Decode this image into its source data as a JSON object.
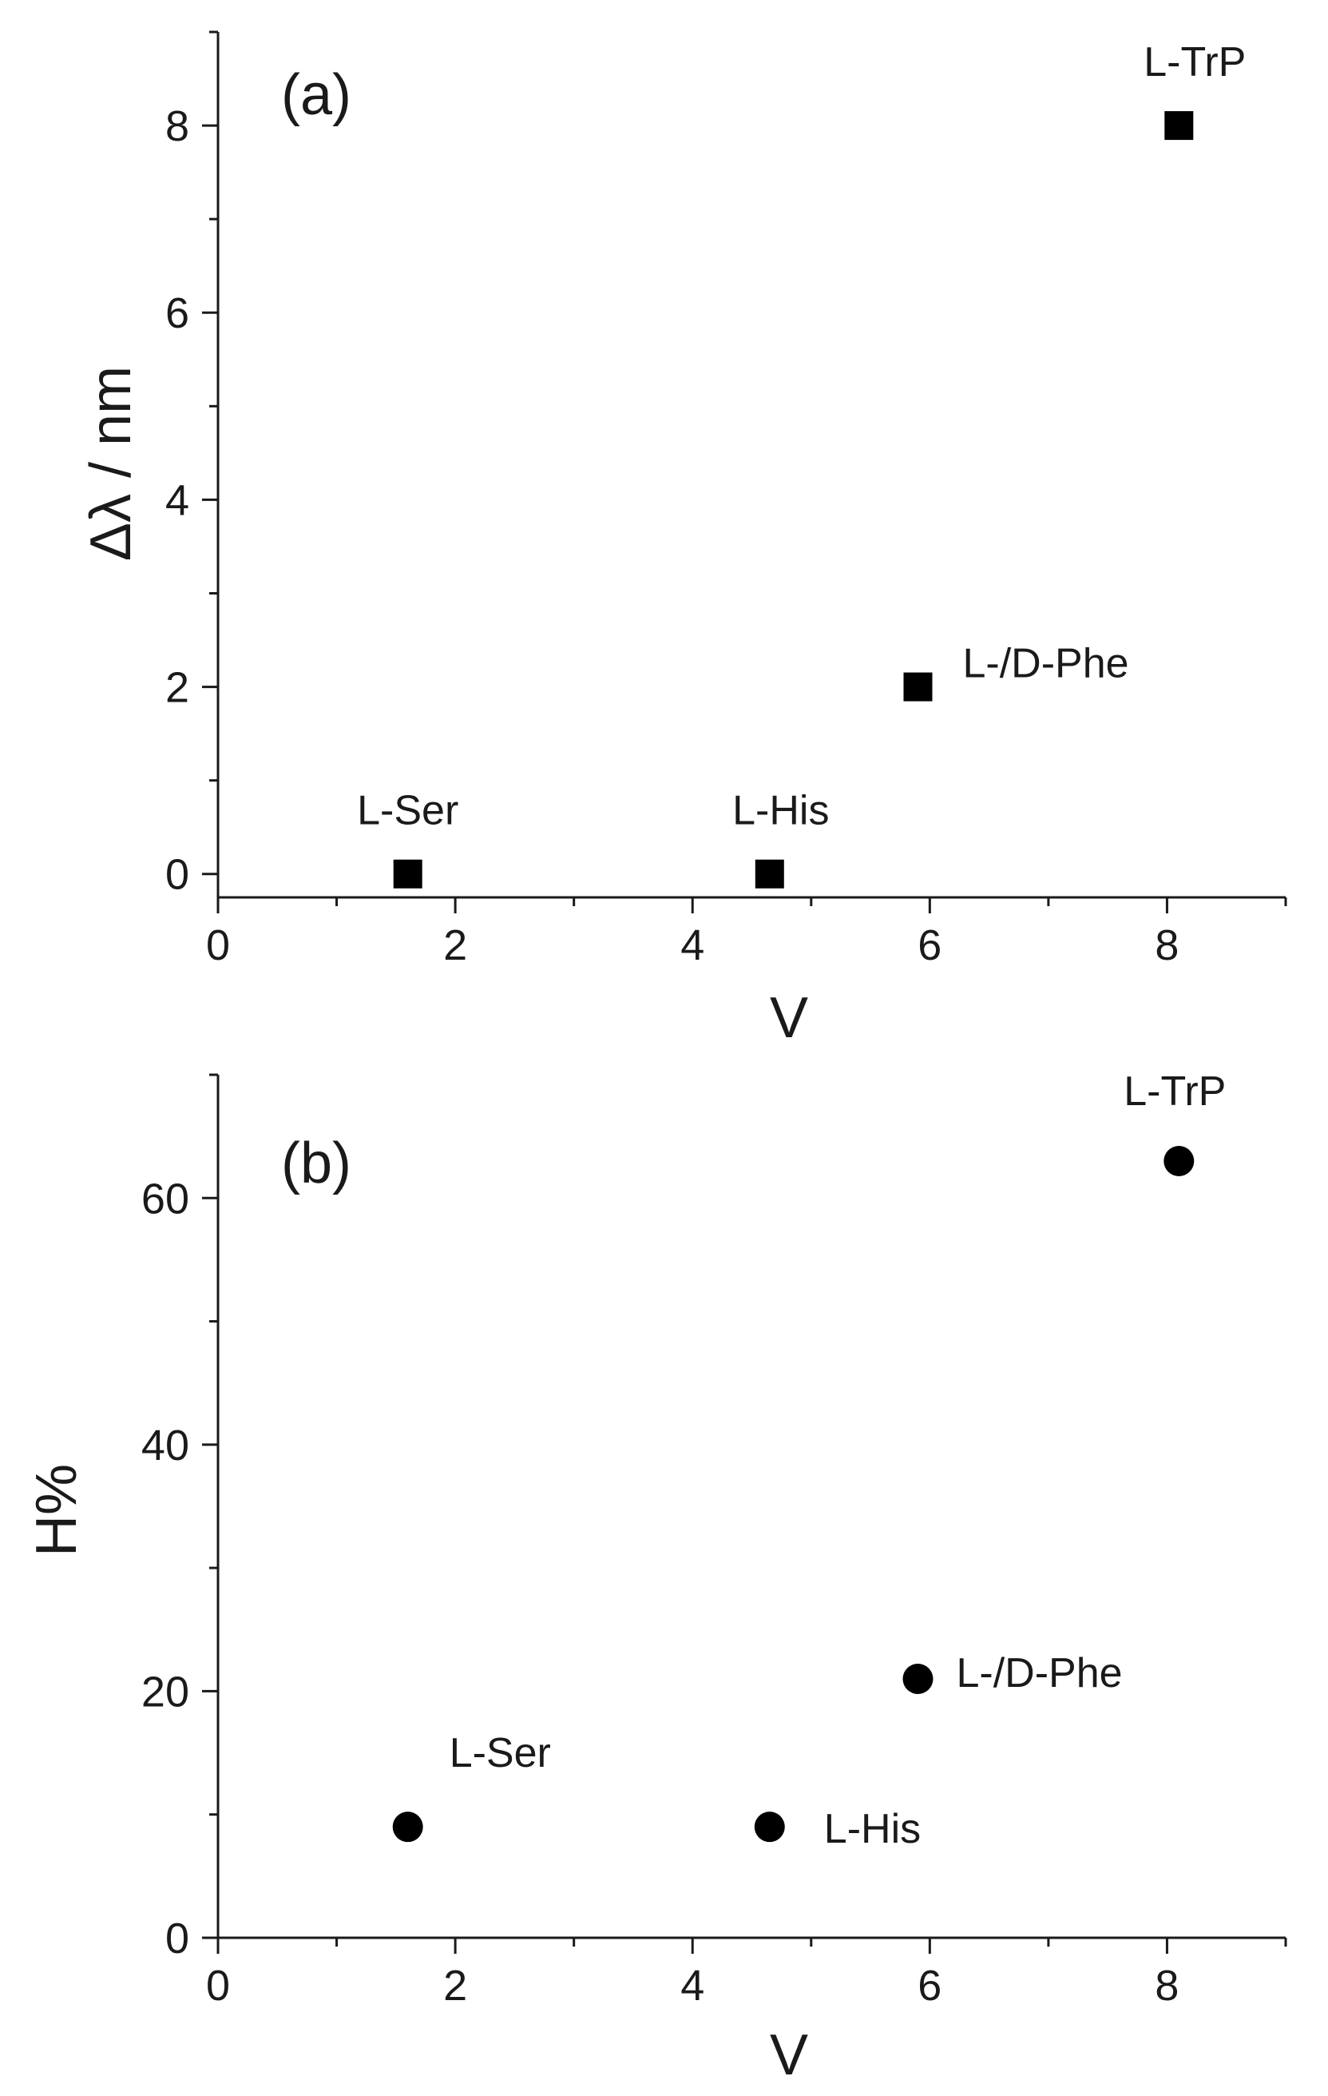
{
  "chart_data": [
    {
      "type": "scatter",
      "panel_label": "(a)",
      "xlabel": "V",
      "ylabel": "Δλ / nm",
      "xlim": [
        0,
        9
      ],
      "ylim": [
        -0.25,
        9
      ],
      "x_ticks": [
        0,
        2,
        4,
        6,
        8
      ],
      "y_ticks": [
        0,
        2,
        4,
        6,
        8
      ],
      "x_tick_labels": [
        "0",
        "2",
        "4",
        "6",
        "8"
      ],
      "y_tick_labels": [
        "0",
        "2",
        "4",
        "6",
        "8"
      ],
      "marker": "square",
      "color": "#000000",
      "grid": false,
      "points": [
        {
          "label": "L-Ser",
          "x": 1.6,
          "y": 0
        },
        {
          "label": "L-His",
          "x": 4.65,
          "y": 0
        },
        {
          "label": "L-/D-Phe",
          "x": 5.9,
          "y": 2
        },
        {
          "label": "L-TrP",
          "x": 8.1,
          "y": 8
        }
      ]
    },
    {
      "type": "scatter",
      "panel_label": "(b)",
      "xlabel": "V",
      "ylabel": "H%",
      "xlim": [
        0,
        9
      ],
      "ylim": [
        0,
        70
      ],
      "x_ticks": [
        0,
        2,
        4,
        6,
        8
      ],
      "y_ticks": [
        0,
        20,
        40,
        60
      ],
      "x_tick_labels": [
        "0",
        "2",
        "4",
        "6",
        "8"
      ],
      "y_tick_labels": [
        "0",
        "20",
        "40",
        "60"
      ],
      "marker": "circle",
      "color": "#000000",
      "grid": false,
      "points": [
        {
          "label": "L-Ser",
          "x": 1.6,
          "y": 9
        },
        {
          "label": "L-His",
          "x": 4.65,
          "y": 9
        },
        {
          "label": "L-/D-Phe",
          "x": 5.9,
          "y": 21
        },
        {
          "label": "L-TrP",
          "x": 8.1,
          "y": 63
        }
      ]
    }
  ]
}
